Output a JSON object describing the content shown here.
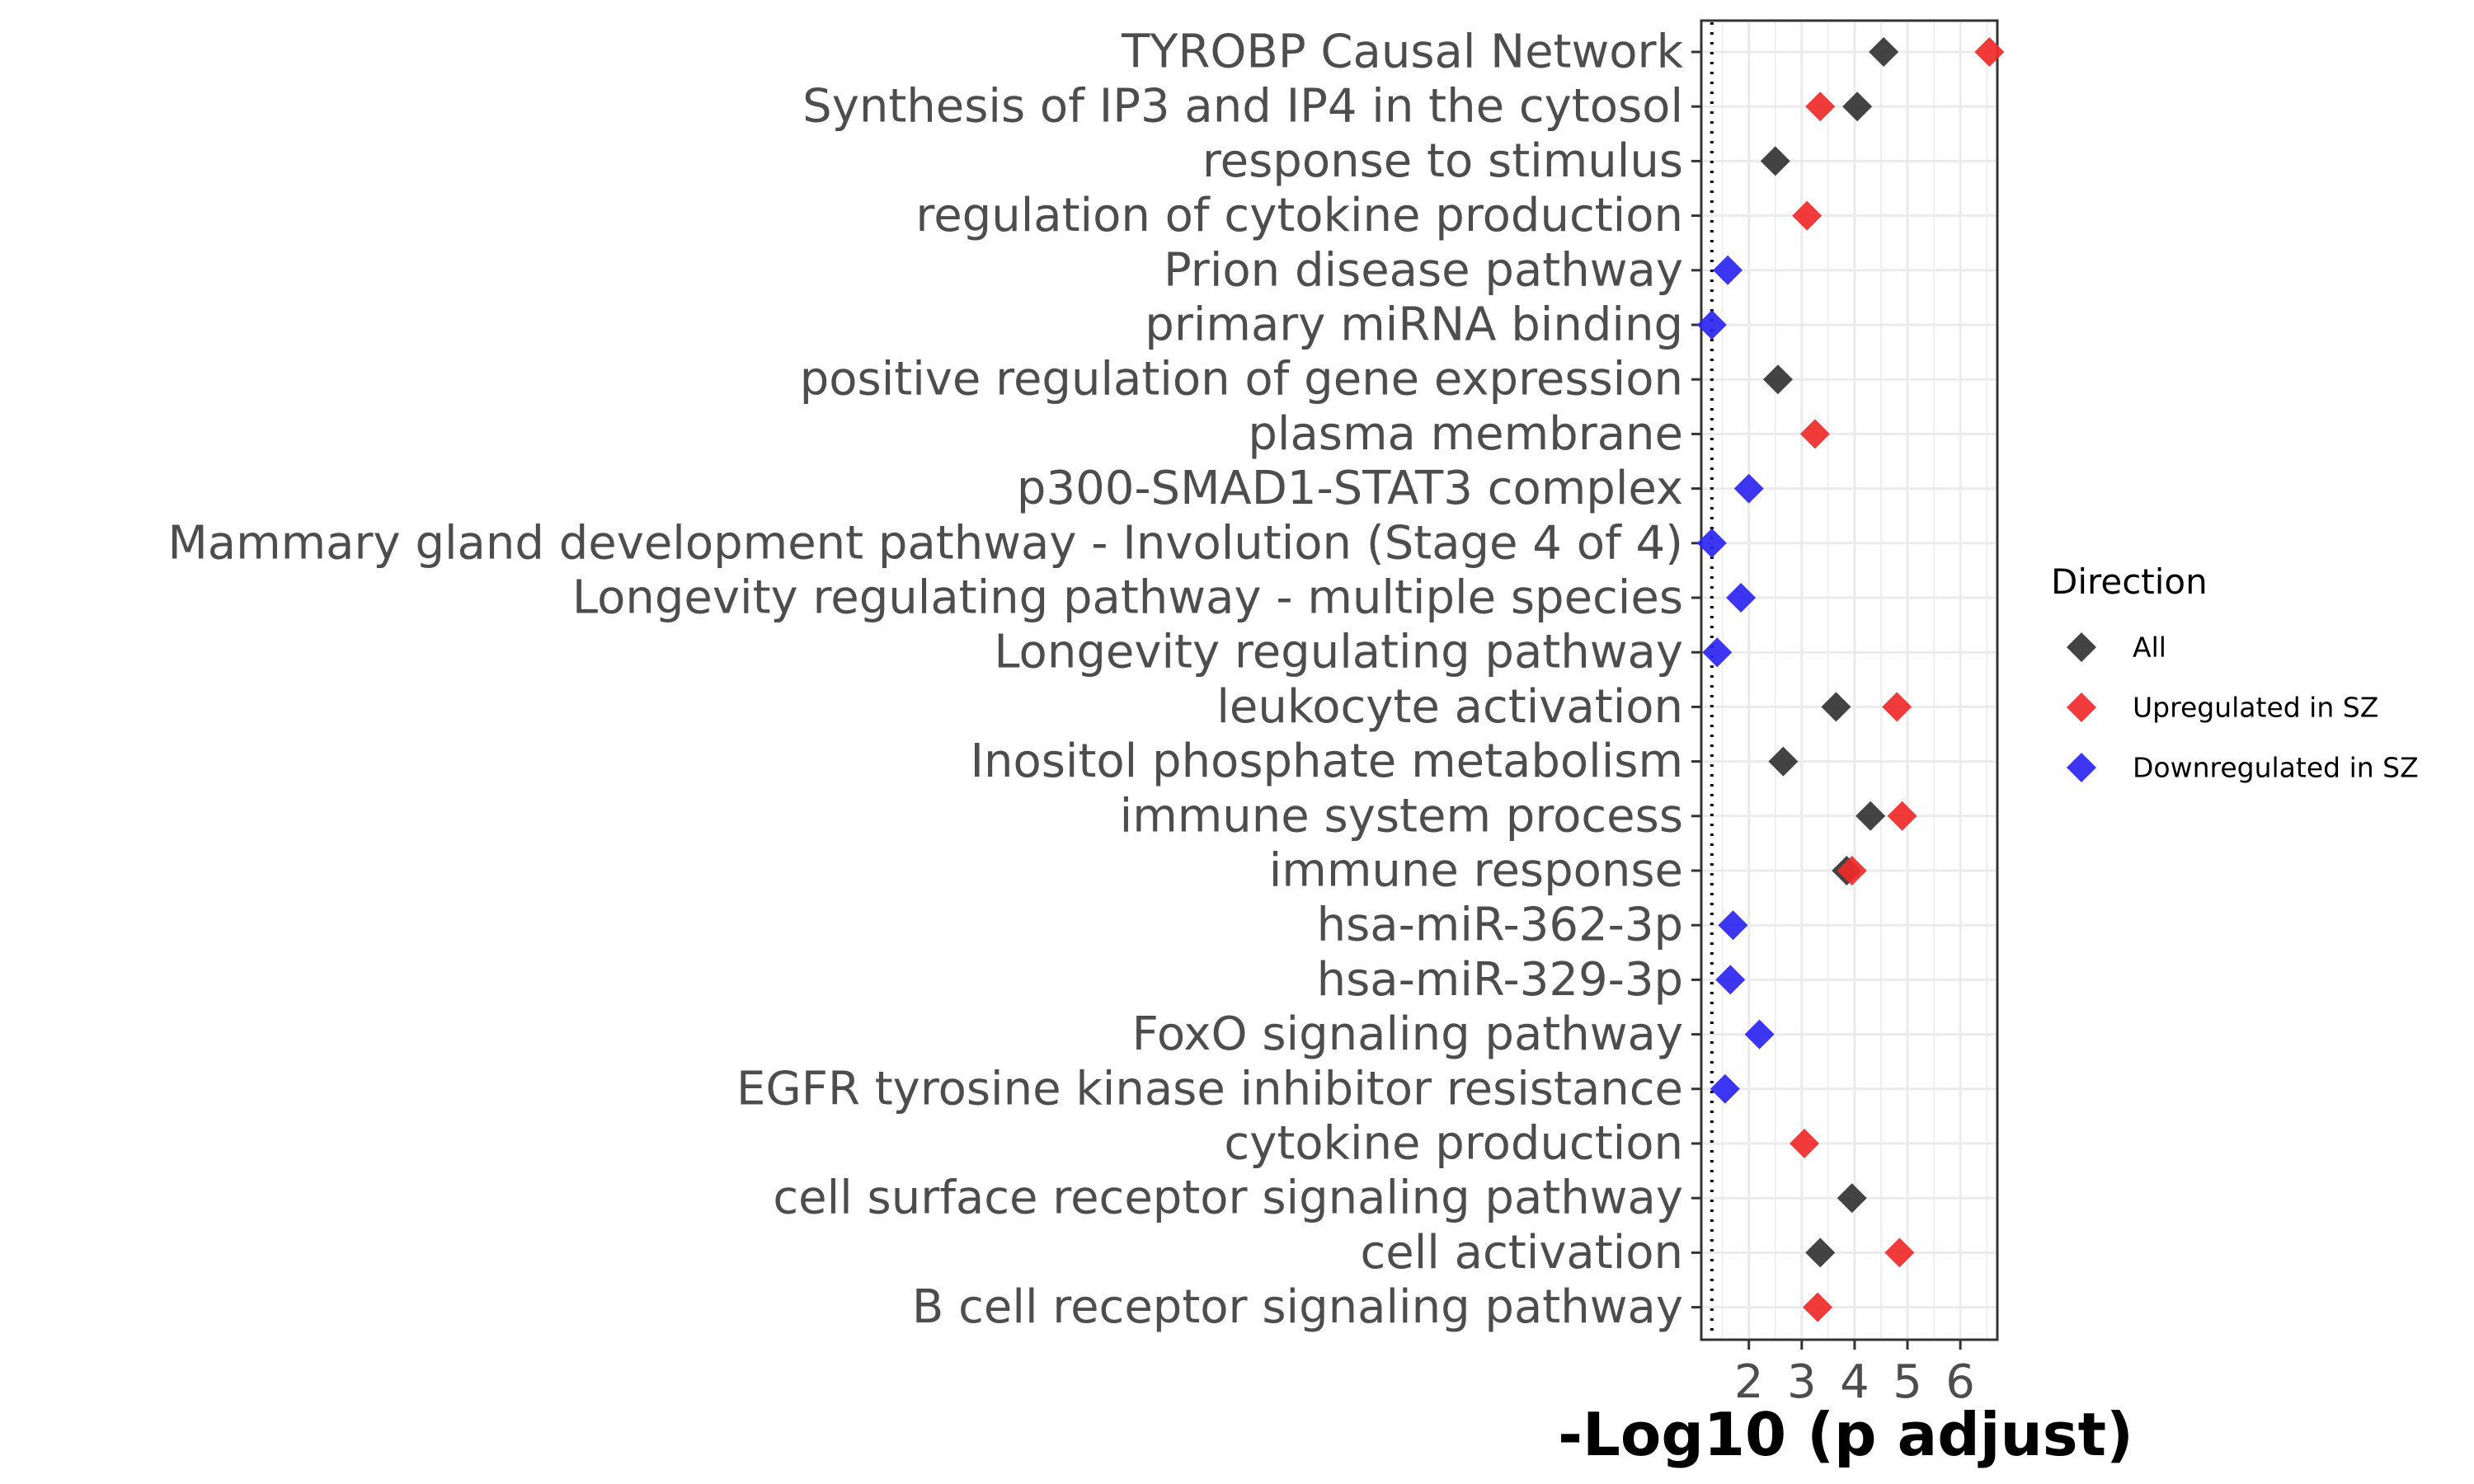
{
  "chart_data": {
    "type": "scatter",
    "marker": "diamond",
    "xlabel": "-Log10 (p adjust)",
    "xlim": [
      1.1,
      6.7
    ],
    "x_ticks": [
      "2",
      "3",
      "4",
      "5",
      "6"
    ],
    "significance_line_x": 1.3,
    "grid": true,
    "legend": {
      "title": "Direction",
      "placement": "right",
      "entries": [
        "All",
        "Upregulated in SZ",
        "Downregulated in SZ"
      ]
    },
    "colors": {
      "All": "#333333",
      "Upregulated in SZ": "#f02a2a",
      "Downregulated in SZ": "#2b24f0"
    },
    "categories": [
      "TYROBP Causal Network",
      "Synthesis of IP3 and IP4 in the cytosol",
      "response to stimulus",
      "regulation of cytokine production",
      "Prion disease pathway",
      "primary miRNA binding",
      "positive regulation of gene expression",
      "plasma membrane",
      "p300-SMAD1-STAT3 complex",
      "Mammary gland development pathway - Involution (Stage 4 of 4)",
      "Longevity regulating pathway - multiple species",
      "Longevity regulating pathway",
      "leukocyte activation",
      "Inositol phosphate metabolism",
      "immune system process",
      "immune response",
      "hsa-miR-362-3p",
      "hsa-miR-329-3p",
      "FoxO signaling pathway",
      "EGFR tyrosine kinase inhibitor resistance",
      "cytokine production",
      "cell surface receptor signaling pathway",
      "cell activation",
      "B cell receptor signaling pathway"
    ],
    "series": [
      {
        "name": "All",
        "points": [
          {
            "category": "TYROBP Causal Network",
            "x": 4.55
          },
          {
            "category": "Synthesis of IP3 and IP4 in the cytosol",
            "x": 4.05
          },
          {
            "category": "response to stimulus",
            "x": 2.5
          },
          {
            "category": "positive regulation of gene expression",
            "x": 2.55
          },
          {
            "category": "leukocyte activation",
            "x": 3.65
          },
          {
            "category": "Inositol phosphate metabolism",
            "x": 2.65
          },
          {
            "category": "immune system process",
            "x": 4.3
          },
          {
            "category": "immune response",
            "x": 3.85
          },
          {
            "category": "cell surface receptor signaling pathway",
            "x": 3.95
          },
          {
            "category": "cell activation",
            "x": 3.35
          }
        ]
      },
      {
        "name": "Upregulated in SZ",
        "points": [
          {
            "category": "TYROBP Causal Network",
            "x": 6.55
          },
          {
            "category": "Synthesis of IP3 and IP4 in the cytosol",
            "x": 3.35
          },
          {
            "category": "regulation of cytokine production",
            "x": 3.1
          },
          {
            "category": "plasma membrane",
            "x": 3.25
          },
          {
            "category": "leukocyte activation",
            "x": 4.8
          },
          {
            "category": "immune system process",
            "x": 4.9
          },
          {
            "category": "immune response",
            "x": 3.95
          },
          {
            "category": "cytokine production",
            "x": 3.05
          },
          {
            "category": "cell activation",
            "x": 4.85
          },
          {
            "category": "B cell receptor signaling pathway",
            "x": 3.3
          }
        ]
      },
      {
        "name": "Downregulated in SZ",
        "points": [
          {
            "category": "Prion disease pathway",
            "x": 1.6
          },
          {
            "category": "primary miRNA binding",
            "x": 1.3
          },
          {
            "category": "p300-SMAD1-STAT3 complex",
            "x": 2.0
          },
          {
            "category": "Mammary gland development pathway - Involution (Stage 4 of 4)",
            "x": 1.3
          },
          {
            "category": "Longevity regulating pathway - multiple species",
            "x": 1.85
          },
          {
            "category": "Longevity regulating pathway",
            "x": 1.4
          },
          {
            "category": "hsa-miR-362-3p",
            "x": 1.7
          },
          {
            "category": "hsa-miR-329-3p",
            "x": 1.65
          },
          {
            "category": "FoxO signaling pathway",
            "x": 2.2
          },
          {
            "category": "EGFR tyrosine kinase inhibitor resistance",
            "x": 1.55
          }
        ]
      }
    ]
  }
}
